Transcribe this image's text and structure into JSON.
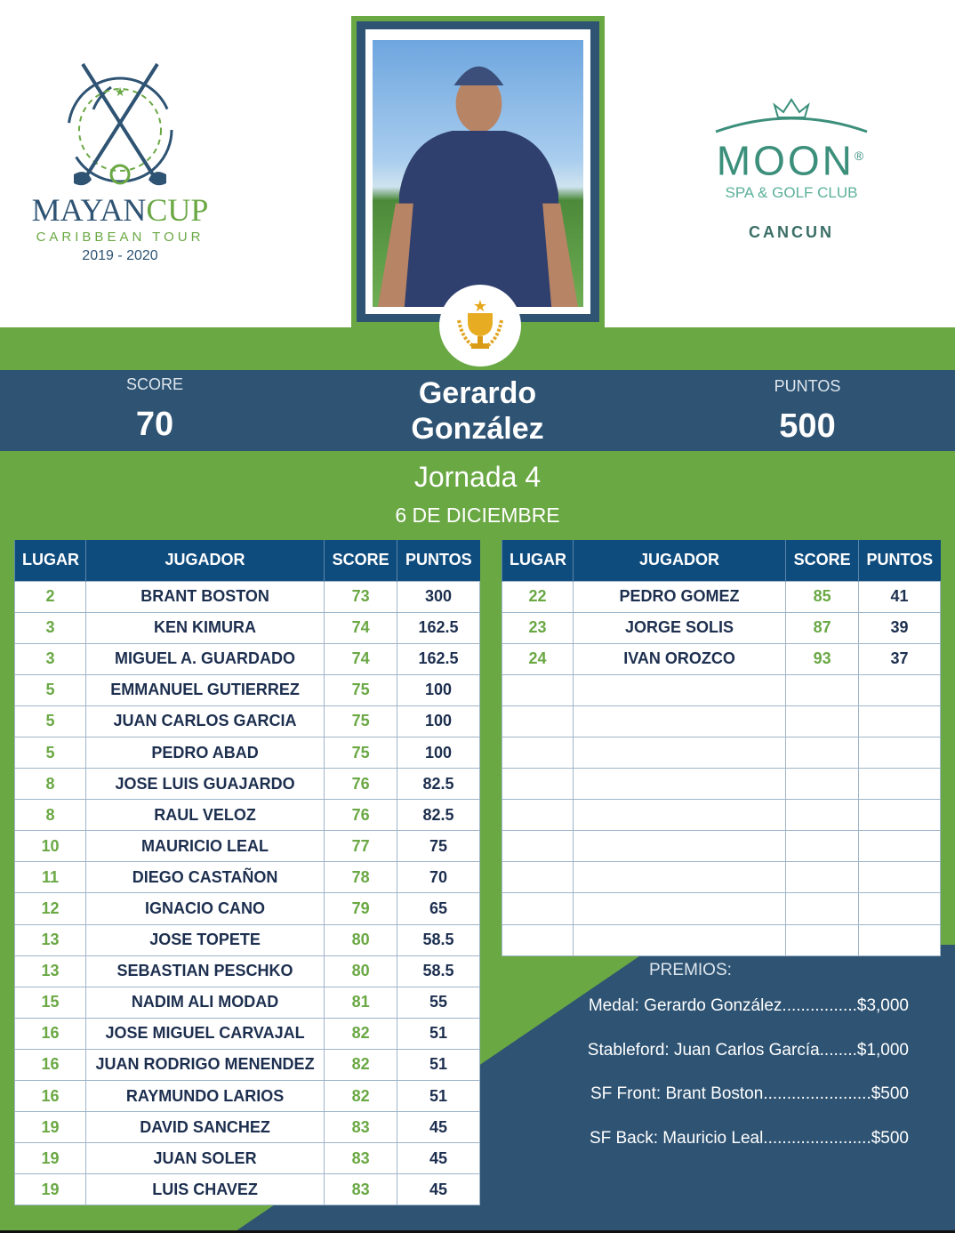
{
  "left_logo": {
    "brand_a": "MAYAN",
    "brand_b": "CUP",
    "subtitle": "CARIBBEAN TOUR",
    "years": "2019 - 2020"
  },
  "right_logo": {
    "brand": "MOON",
    "reg": "®",
    "subtitle": "SPA & GOLF CLUB",
    "city": "CANCUN"
  },
  "winner": {
    "score_label": "SCORE",
    "score": "70",
    "first_name": "Gerardo",
    "last_name": "González",
    "points_label": "PUNTOS",
    "points": "500"
  },
  "event": {
    "round": "Jornada 4",
    "date": "6 DE DICIEMBRE"
  },
  "colors": {
    "green": "#6aa844",
    "navy": "#2e5373",
    "header": "#0f4c7e"
  },
  "table_headers": [
    "LUGAR",
    "JUGADOR",
    "SCORE",
    "PUNTOS"
  ],
  "left_rows": [
    [
      "2",
      "BRANT BOSTON",
      "73",
      "300"
    ],
    [
      "3",
      "KEN KIMURA",
      "74",
      "162.5"
    ],
    [
      "3",
      "MIGUEL A. GUARDADO",
      "74",
      "162.5"
    ],
    [
      "5",
      "EMMANUEL GUTIERREZ",
      "75",
      "100"
    ],
    [
      "5",
      "JUAN CARLOS GARCIA",
      "75",
      "100"
    ],
    [
      "5",
      "PEDRO ABAD",
      "75",
      "100"
    ],
    [
      "8",
      "JOSE LUIS GUAJARDO",
      "76",
      "82.5"
    ],
    [
      "8",
      "RAUL VELOZ",
      "76",
      "82.5"
    ],
    [
      "10",
      "MAURICIO LEAL",
      "77",
      "75"
    ],
    [
      "11",
      "DIEGO CASTAÑON",
      "78",
      "70"
    ],
    [
      "12",
      "IGNACIO CANO",
      "79",
      "65"
    ],
    [
      "13",
      "JOSE TOPETE",
      "80",
      "58.5"
    ],
    [
      "13",
      "SEBASTIAN PESCHKO",
      "80",
      "58.5"
    ],
    [
      "15",
      "NADIM ALI MODAD",
      "81",
      "55"
    ],
    [
      "16",
      "JOSE MIGUEL CARVAJAL",
      "82",
      "51"
    ],
    [
      "16",
      "JUAN RODRIGO MENENDEZ",
      "82",
      "51"
    ],
    [
      "16",
      "RAYMUNDO LARIOS",
      "82",
      "51"
    ],
    [
      "19",
      "DAVID SANCHEZ",
      "83",
      "45"
    ],
    [
      "19",
      "JUAN SOLER",
      "83",
      "45"
    ],
    [
      "19",
      "LUIS CHAVEZ",
      "83",
      "45"
    ]
  ],
  "right_rows": [
    [
      "22",
      "PEDRO GOMEZ",
      "85",
      "41"
    ],
    [
      "23",
      "JORGE SOLIS",
      "87",
      "39"
    ],
    [
      "24",
      "IVAN OROZCO",
      "93",
      "37"
    ],
    [
      "",
      "",
      "",
      ""
    ],
    [
      "",
      "",
      "",
      ""
    ],
    [
      "",
      "",
      "",
      ""
    ],
    [
      "",
      "",
      "",
      ""
    ],
    [
      "",
      "",
      "",
      ""
    ],
    [
      "",
      "",
      "",
      ""
    ],
    [
      "",
      "",
      "",
      ""
    ],
    [
      "",
      "",
      "",
      ""
    ],
    [
      "",
      "",
      "",
      ""
    ]
  ],
  "prizes": {
    "title": "PREMIOS:",
    "items": [
      "Medal: Gerardo González................$3,000",
      "Stableford: Juan Carlos García........$1,000",
      "SF Front: Brant Boston.......................$500",
      "SF Back: Mauricio Leal.......................$500"
    ]
  }
}
